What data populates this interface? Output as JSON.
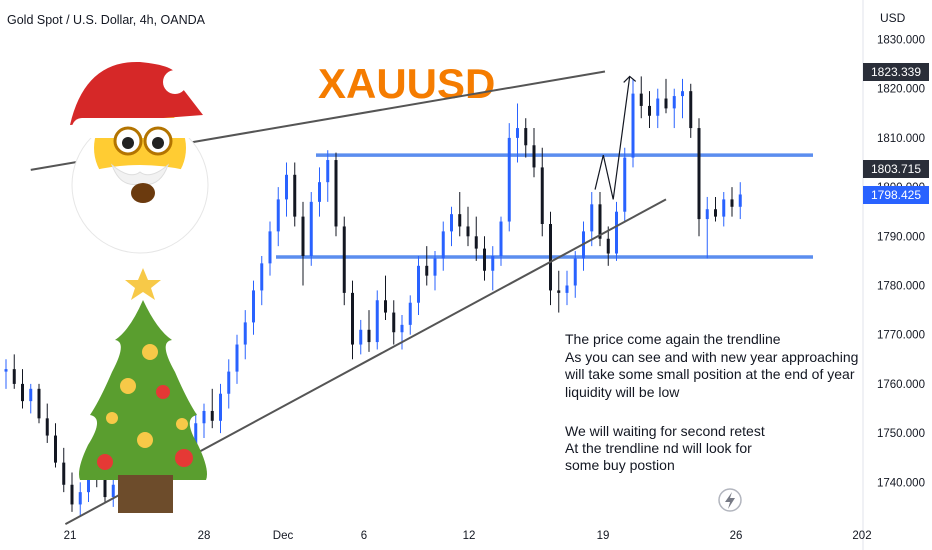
{
  "symbol_header": "Gold Spot / U.S. Dollar, 4h, OANDA",
  "currency_label": "USD",
  "big_title": "XAUUSD",
  "annotation": {
    "paragraph1": [
      "The price come again the trendline",
      "As you can see and with new year approaching",
      "will take some small position at the end of year",
      "liquidity will be low"
    ],
    "paragraph2": [
      "We will waiting for second retest",
      "At the trendline nd will look for",
      "some buy postion"
    ]
  },
  "price_tags": [
    {
      "label": "1823.339",
      "bg": "#2a2e39",
      "fg": "#ffffff"
    },
    {
      "label": "1803.715",
      "bg": "#2a2e39",
      "fg": "#ffffff"
    },
    {
      "label": "1798.425",
      "bg": "#2962ff",
      "fg": "#ffffff"
    }
  ],
  "colors": {
    "up": "#2962ff",
    "down": "#131722",
    "hline": "#5b8def",
    "trendline": "#555555",
    "title": "#f57c00",
    "axis_text": "#131722",
    "grid": "#f0f3fa"
  },
  "icons": [
    "santa-icon",
    "christmas-tree-icon",
    "lightning-icon"
  ],
  "chart_data": {
    "type": "candlestick",
    "timeframe": "4h",
    "y_axis": {
      "unit": "USD",
      "range": [
        1732,
        1833
      ],
      "ticks": [
        "1830.000",
        "1820.000",
        "1810.000",
        "1800.000",
        "1790.000",
        "1780.000",
        "1770.000",
        "1760.000",
        "1750.000",
        "1740.000"
      ]
    },
    "x_axis": {
      "ticks": [
        "21",
        "28",
        "Dec",
        "6",
        "12",
        "19",
        "26",
        "202"
      ]
    },
    "horizontal_levels": [
      1806.5,
      1785.8
    ],
    "trendlines": [
      {
        "name": "upper",
        "from": [
          1.5,
          1803.5
        ],
        "to": [
          36.3,
          1823.5
        ]
      },
      {
        "name": "lower",
        "from": [
          3.6,
          1731.5
        ],
        "to": [
          40.0,
          1797.5
        ]
      }
    ],
    "projection_path": [
      [
        35.7,
        1799.5
      ],
      [
        36.2,
        1806.5
      ],
      [
        36.8,
        1797.5
      ],
      [
        37.8,
        1822.5
      ]
    ],
    "candles": [
      [
        1762.5,
        1765.0,
        1759.0,
        1763.0
      ],
      [
        1763.0,
        1766.0,
        1759.0,
        1760.0
      ],
      [
        1760.0,
        1763.0,
        1755.0,
        1756.5
      ],
      [
        1756.5,
        1760.0,
        1754.0,
        1759.0
      ],
      [
        1759.0,
        1760.0,
        1752.0,
        1753.0
      ],
      [
        1753.0,
        1756.0,
        1748.0,
        1749.5
      ],
      [
        1749.5,
        1752.0,
        1743.0,
        1744.0
      ],
      [
        1744.0,
        1747.0,
        1738.0,
        1739.5
      ],
      [
        1739.5,
        1742.0,
        1734.0,
        1735.5
      ],
      [
        1735.5,
        1740.0,
        1733.0,
        1738.0
      ],
      [
        1738.0,
        1744.0,
        1736.0,
        1742.0
      ],
      [
        1742.0,
        1746.0,
        1739.0,
        1740.5
      ],
      [
        1740.5,
        1744.0,
        1736.0,
        1737.0
      ],
      [
        1737.0,
        1741.0,
        1735.0,
        1739.5
      ],
      [
        1739.5,
        1746.0,
        1738.0,
        1744.5
      ],
      [
        1744.5,
        1750.0,
        1742.0,
        1748.0
      ],
      [
        1748.0,
        1752.0,
        1745.0,
        1749.5
      ],
      [
        1749.5,
        1758.0,
        1747.0,
        1756.0
      ],
      [
        1756.0,
        1760.0,
        1752.0,
        1754.5
      ],
      [
        1754.5,
        1757.0,
        1750.0,
        1751.5
      ],
      [
        1751.5,
        1755.0,
        1746.0,
        1747.5
      ],
      [
        1747.5,
        1750.0,
        1743.0,
        1745.0
      ],
      [
        1745.0,
        1749.0,
        1741.0,
        1747.5
      ],
      [
        1747.5,
        1754.0,
        1745.0,
        1752.0
      ],
      [
        1752.0,
        1756.0,
        1749.0,
        1754.5
      ],
      [
        1754.5,
        1759.0,
        1751.0,
        1752.5
      ],
      [
        1752.5,
        1760.0,
        1750.0,
        1758.0
      ],
      [
        1758.0,
        1765.0,
        1755.0,
        1762.5
      ],
      [
        1762.5,
        1770.0,
        1760.0,
        1768.0
      ],
      [
        1768.0,
        1775.0,
        1765.0,
        1772.5
      ],
      [
        1772.5,
        1781.0,
        1770.0,
        1779.0
      ],
      [
        1779.0,
        1786.0,
        1776.0,
        1784.5
      ],
      [
        1784.5,
        1793.0,
        1782.0,
        1791.0
      ],
      [
        1791.0,
        1800.0,
        1788.0,
        1797.5
      ],
      [
        1797.5,
        1805.0,
        1794.0,
        1802.5
      ],
      [
        1802.5,
        1805.0,
        1792.0,
        1794.0
      ],
      [
        1794.0,
        1797.0,
        1780.0,
        1786.0
      ],
      [
        1786.0,
        1799.0,
        1784.0,
        1797.0
      ],
      [
        1797.0,
        1804.0,
        1794.0,
        1801.0
      ],
      [
        1801.0,
        1807.5,
        1797.0,
        1805.5
      ],
      [
        1805.5,
        1807.0,
        1790.0,
        1792.0
      ],
      [
        1792.0,
        1794.0,
        1776.0,
        1778.5
      ],
      [
        1778.5,
        1781.0,
        1765.0,
        1768.0
      ],
      [
        1768.0,
        1773.0,
        1766.0,
        1771.0
      ],
      [
        1771.0,
        1775.0,
        1766.5,
        1768.5
      ],
      [
        1768.5,
        1779.0,
        1767.0,
        1777.0
      ],
      [
        1777.0,
        1782.0,
        1773.0,
        1774.5
      ],
      [
        1774.5,
        1777.0,
        1768.0,
        1770.5
      ],
      [
        1770.5,
        1774.0,
        1767.0,
        1772.0
      ],
      [
        1772.0,
        1778.0,
        1770.0,
        1776.5
      ],
      [
        1776.5,
        1786.0,
        1774.0,
        1784.0
      ],
      [
        1784.0,
        1788.0,
        1780.0,
        1782.0
      ],
      [
        1782.0,
        1787.0,
        1779.0,
        1785.5
      ],
      [
        1785.5,
        1793.0,
        1783.0,
        1791.0
      ],
      [
        1791.0,
        1796.0,
        1788.0,
        1794.5
      ],
      [
        1794.5,
        1799.0,
        1790.0,
        1792.0
      ],
      [
        1792.0,
        1796.0,
        1788.0,
        1790.0
      ],
      [
        1790.0,
        1794.0,
        1785.0,
        1787.5
      ],
      [
        1787.5,
        1790.0,
        1781.0,
        1783.0
      ],
      [
        1783.0,
        1788.0,
        1779.0,
        1786.0
      ],
      [
        1786.0,
        1794.0,
        1784.0,
        1793.0
      ],
      [
        1793.0,
        1813.0,
        1791.0,
        1810.0
      ],
      [
        1810.0,
        1817.0,
        1805.0,
        1812.0
      ],
      [
        1812.0,
        1814.0,
        1806.0,
        1808.5
      ],
      [
        1808.5,
        1812.0,
        1802.0,
        1804.0
      ],
      [
        1804.0,
        1808.0,
        1790.0,
        1792.5
      ],
      [
        1792.5,
        1795.0,
        1776.0,
        1779.0
      ],
      [
        1779.0,
        1783.0,
        1774.5,
        1778.5
      ],
      [
        1778.5,
        1783.0,
        1776.0,
        1780.0
      ],
      [
        1780.0,
        1787.0,
        1777.5,
        1785.5
      ],
      [
        1785.5,
        1793.0,
        1783.0,
        1791.0
      ],
      [
        1791.0,
        1799.0,
        1788.0,
        1796.5
      ],
      [
        1796.5,
        1799.0,
        1788.0,
        1789.5
      ],
      [
        1789.5,
        1792.0,
        1784.0,
        1786.5
      ],
      [
        1786.5,
        1797.0,
        1785.0,
        1795.0
      ],
      [
        1795.0,
        1808.0,
        1793.0,
        1806.0
      ],
      [
        1806.0,
        1822.0,
        1804.0,
        1819.0
      ],
      [
        1819.0,
        1822.5,
        1814.0,
        1816.5
      ],
      [
        1816.5,
        1819.5,
        1812.0,
        1814.5
      ],
      [
        1814.5,
        1820.0,
        1812.0,
        1818.0
      ],
      [
        1818.0,
        1822.0,
        1815.0,
        1816.0
      ],
      [
        1816.0,
        1820.0,
        1812.0,
        1818.5
      ],
      [
        1818.5,
        1822.0,
        1814.0,
        1819.5
      ],
      [
        1819.5,
        1821.0,
        1810.0,
        1812.0
      ],
      [
        1812.0,
        1814.0,
        1790.0,
        1793.5
      ],
      [
        1793.5,
        1798.0,
        1785.5,
        1795.5
      ],
      [
        1795.5,
        1798.0,
        1793.0,
        1794.0
      ],
      [
        1794.0,
        1799.0,
        1792.0,
        1797.5
      ],
      [
        1797.5,
        1800.0,
        1794.0,
        1796.0
      ],
      [
        1796.0,
        1801.0,
        1793.5,
        1798.5
      ]
    ]
  }
}
